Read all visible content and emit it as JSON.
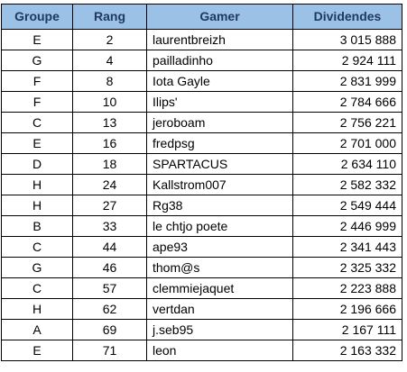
{
  "table": {
    "headers": {
      "groupe": "Groupe",
      "rang": "Rang",
      "gamer": "Gamer",
      "dividendes": "Dividendes"
    },
    "rows": [
      {
        "groupe": "E",
        "rang": "2",
        "gamer": "laurentbreizh",
        "dividendes": "3 015 888"
      },
      {
        "groupe": "G",
        "rang": "4",
        "gamer": "pailladinho",
        "dividendes": "2 924 111"
      },
      {
        "groupe": "F",
        "rang": "8",
        "gamer": "Iota Gayle",
        "dividendes": "2 831 999"
      },
      {
        "groupe": "F",
        "rang": "10",
        "gamer": "Ilips'",
        "dividendes": "2 784 666"
      },
      {
        "groupe": "C",
        "rang": "13",
        "gamer": "jeroboam",
        "dividendes": "2 756 221"
      },
      {
        "groupe": "E",
        "rang": "16",
        "gamer": "fredpsg",
        "dividendes": "2 701 000"
      },
      {
        "groupe": "D",
        "rang": "18",
        "gamer": "SPARTACUS",
        "dividendes": "2 634 110"
      },
      {
        "groupe": "H",
        "rang": "24",
        "gamer": "Kallstrom007",
        "dividendes": "2 582 332"
      },
      {
        "groupe": "H",
        "rang": "27",
        "gamer": "Rg38",
        "dividendes": "2 549 444"
      },
      {
        "groupe": "B",
        "rang": "33",
        "gamer": "le chtjo poete",
        "dividendes": "2 446 999"
      },
      {
        "groupe": "C",
        "rang": "44",
        "gamer": "ape93",
        "dividendes": "2 341 443"
      },
      {
        "groupe": "G",
        "rang": "46",
        "gamer": "thom@s",
        "dividendes": "2 325 332"
      },
      {
        "groupe": "C",
        "rang": "57",
        "gamer": "clemmiejaquet",
        "dividendes": "2 223 888"
      },
      {
        "groupe": "H",
        "rang": "62",
        "gamer": "vertdan",
        "dividendes": "2 196 666"
      },
      {
        "groupe": "A",
        "rang": "69",
        "gamer": "j.seb95",
        "dividendes": "2 167 111"
      },
      {
        "groupe": "E",
        "rang": "71",
        "gamer": "leon",
        "dividendes": "2 163 332"
      }
    ]
  },
  "colors": {
    "header_fill": "#9bc2e6",
    "header_text": "#1f3864",
    "grid_line": "#000000"
  }
}
